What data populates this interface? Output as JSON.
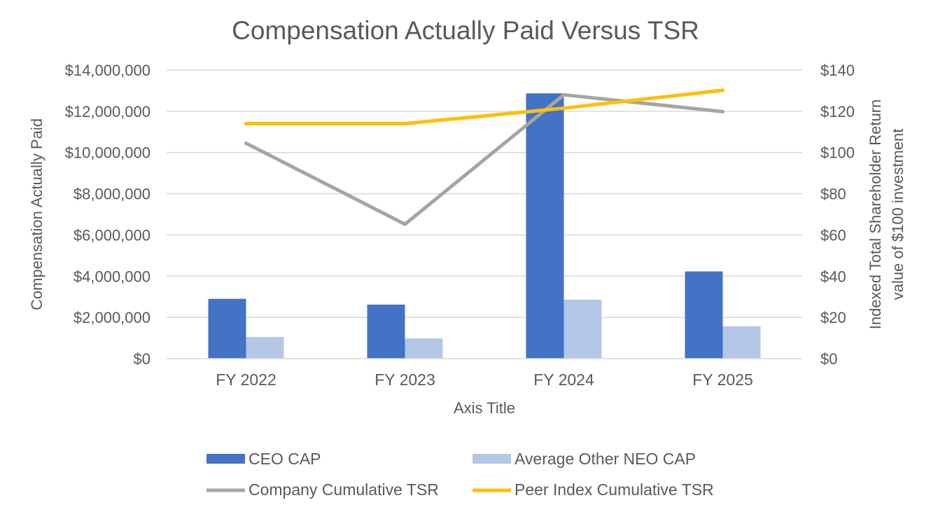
{
  "chart_data": {
    "type": "bar",
    "title": "Compensation Actually Paid Versus TSR",
    "categories": [
      "FY 2022",
      "FY 2023",
      "FY 2024",
      "FY 2025"
    ],
    "xlabel": "Axis Title",
    "ylabel": "Compensation Actually Paid",
    "ylabel_right": [
      "Indexed Total Shareholder Return",
      "value of $100 investment"
    ],
    "ylim": [
      0,
      14000000
    ],
    "ylim_right": [
      0,
      140
    ],
    "y_ticks": [
      "$0",
      "$2,000,000",
      "$4,000,000",
      "$6,000,000",
      "$8,000,000",
      "$10,000,000",
      "$12,000,000",
      "$14,000,000"
    ],
    "y_tick_values": [
      0,
      2000000,
      4000000,
      6000000,
      8000000,
      10000000,
      12000000,
      14000000
    ],
    "y_ticks_right": [
      "$0",
      "$20",
      "$40",
      "$60",
      "$80",
      "$100",
      "$120",
      "$140"
    ],
    "y_tick_values_right": [
      0,
      20,
      40,
      60,
      80,
      100,
      120,
      140
    ],
    "grid": true,
    "legend_position": "bottom",
    "series": [
      {
        "name": "CEO CAP",
        "kind": "bar",
        "axis": "left",
        "color": "#4472C4",
        "values": [
          2900000,
          2620000,
          12870000,
          4230000
        ]
      },
      {
        "name": "Average Other NEO CAP",
        "kind": "bar",
        "axis": "left",
        "color": "#B4C7E7",
        "values": [
          1050000,
          980000,
          2860000,
          1570000
        ]
      },
      {
        "name": "Company Cumulative TSR",
        "kind": "line",
        "axis": "right",
        "color": "#A5A5A5",
        "values": [
          104.5,
          65.2,
          128,
          119.8
        ]
      },
      {
        "name": "Peer Index Cumulative TSR",
        "kind": "line",
        "axis": "right",
        "color": "#FFC000",
        "values": [
          114,
          114,
          121.5,
          130.2
        ]
      }
    ]
  }
}
